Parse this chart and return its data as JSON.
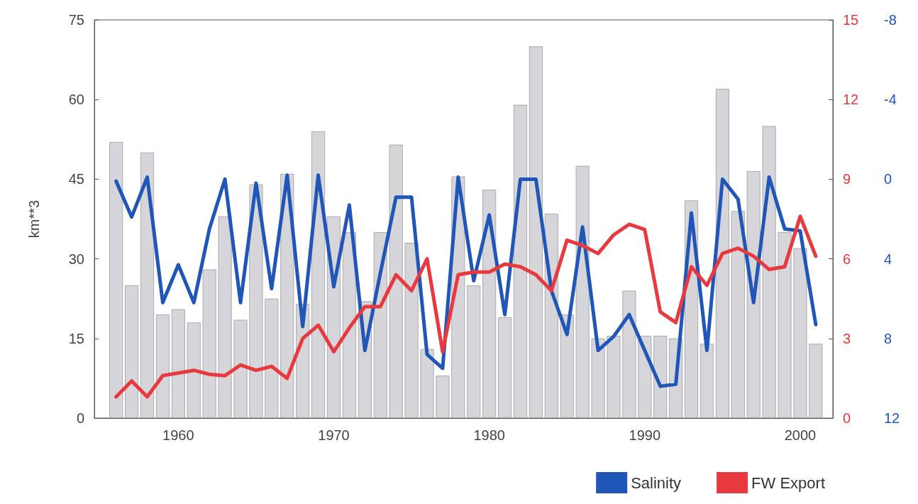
{
  "chart_data": {
    "type": "bar",
    "ylabel": "km**3",
    "x": [
      1956,
      1957,
      1958,
      1959,
      1960,
      1961,
      1962,
      1963,
      1964,
      1965,
      1966,
      1967,
      1968,
      1969,
      1970,
      1971,
      1972,
      1973,
      1974,
      1975,
      1976,
      1977,
      1978,
      1979,
      1980,
      1981,
      1982,
      1983,
      1984,
      1985,
      1986,
      1987,
      1988,
      1989,
      1990,
      1991,
      1992,
      1993,
      1994,
      1995,
      1996,
      1997,
      1998,
      1999,
      2000,
      2001
    ],
    "xlim": [
      1954.6,
      2002.1
    ],
    "xticks": [
      1960,
      1970,
      1980,
      1990,
      2000
    ],
    "ylim": [
      0,
      75
    ],
    "yticks": [
      0,
      15,
      30,
      45,
      60,
      75
    ],
    "y2lim": [
      0,
      15
    ],
    "y2ticks": [
      0,
      3,
      6,
      9,
      12,
      15
    ],
    "y3lim": [
      12,
      -8
    ],
    "y3ticks": [
      12,
      8,
      4,
      0,
      -4,
      -8
    ],
    "grid": false,
    "legend": "bottom right",
    "marker": "none",
    "line_style": "solid",
    "series": [
      {
        "color": "#d6d6da",
        "values": [
          52,
          25,
          50,
          19.5,
          20.5,
          18,
          28,
          38,
          18.5,
          44,
          22.5,
          46,
          21.5,
          54,
          38,
          35,
          22,
          35,
          51.5,
          33,
          13,
          8,
          45.5,
          25,
          43,
          19,
          59,
          70,
          38.5,
          19.5,
          47.5,
          15,
          15.5,
          24,
          15.5,
          15.5,
          15,
          41,
          14,
          62,
          39,
          46.5,
          55,
          35,
          32,
          14
        ]
      },
      {
        "type": "line",
        "name": "Salinity",
        "axis": "y3",
        "color": "#1f56b8",
        "values": [
          0.1,
          1.9,
          -0.1,
          6.2,
          4.3,
          6.2,
          2.5,
          0,
          6.2,
          0.2,
          5.5,
          -0.2,
          7.4,
          -0.2,
          5.4,
          1.3,
          8.6,
          4.7,
          0.9,
          0.9,
          8.8,
          9.5,
          -0.1,
          5.1,
          1.8,
          6.8,
          0,
          0,
          5.6,
          7.8,
          2.4,
          8.6,
          7.9,
          6.8,
          8.6,
          10.4,
          10.3,
          1.7,
          8.6,
          0,
          1.0,
          6.2,
          -0.1,
          2.5,
          2.6,
          7.3
        ]
      },
      {
        "type": "line",
        "name": "FW Export",
        "axis": "y2",
        "color": "#e8393f",
        "values": [
          0.8,
          1.4,
          0.8,
          1.6,
          1.7,
          1.8,
          1.65,
          1.6,
          2.0,
          1.8,
          1.95,
          1.5,
          3.0,
          3.5,
          2.5,
          3.4,
          4.2,
          4.2,
          5.4,
          4.8,
          6.0,
          2.5,
          5.4,
          5.5,
          5.5,
          5.8,
          5.7,
          5.4,
          4.8,
          6.7,
          6.5,
          6.2,
          6.9,
          7.3,
          7.1,
          4.0,
          3.6,
          5.7,
          5.0,
          6.2,
          6.4,
          6.1,
          5.6,
          5.7,
          7.6,
          6.1
        ]
      }
    ]
  }
}
